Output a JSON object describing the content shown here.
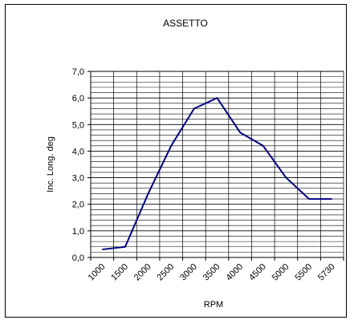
{
  "chart_data": {
    "type": "line",
    "title": "ASSETTO",
    "xlabel": "RPM",
    "ylabel": "Inc. Long. deg",
    "categories": [
      "1000",
      "1500",
      "2000",
      "2500",
      "3000",
      "3500",
      "4000",
      "4500",
      "5000",
      "5500",
      "5730"
    ],
    "series": [
      {
        "values": [
          0.3,
          0.4,
          2.4,
          4.2,
          5.6,
          6.0,
          4.7,
          4.2,
          3.0,
          2.2,
          2.2
        ]
      }
    ],
    "ylim": [
      0,
      7
    ],
    "y_ticks": [
      "0,0",
      "1,0",
      "2,0",
      "3,0",
      "4,0",
      "5,0",
      "6,0",
      "7,0"
    ],
    "grid": true,
    "legend": "none",
    "colors": {
      "line": "#000080",
      "grid": "#000000",
      "axis": "#000000"
    }
  }
}
